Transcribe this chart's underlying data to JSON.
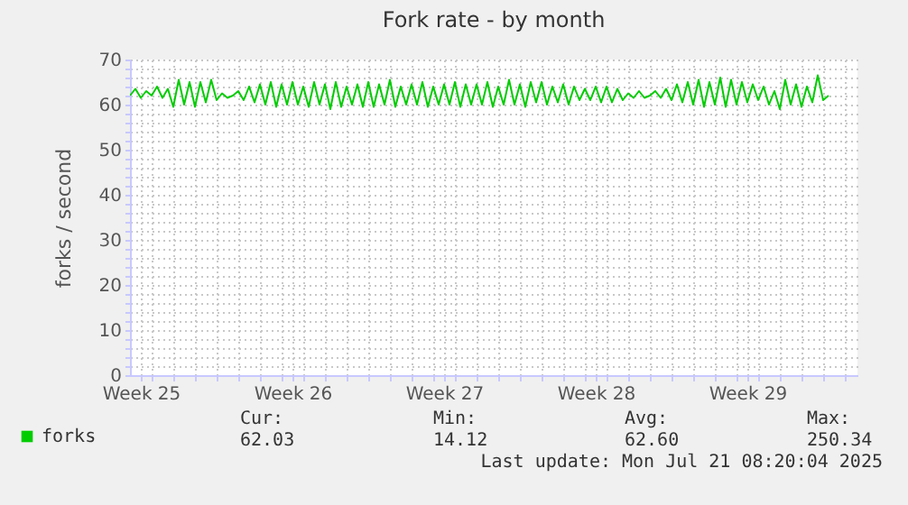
{
  "chart_data": {
    "type": "line",
    "title": "Fork rate - by month",
    "ylabel": "forks / second",
    "x": [
      "2025-06-19T00:00",
      "2025-06-19T06:00",
      "2025-06-19T12:00",
      "2025-06-19T18:00",
      "2025-06-20T00:00",
      "2025-06-20T06:00",
      "2025-06-20T12:00",
      "2025-06-20T18:00",
      "2025-06-21T00:00",
      "2025-06-21T06:00",
      "2025-06-21T12:00",
      "2025-06-21T18:00",
      "2025-06-22T00:00",
      "2025-06-22T06:00",
      "2025-06-22T12:00",
      "2025-06-22T18:00",
      "2025-06-23T00:00",
      "2025-06-23T06:00",
      "2025-06-23T12:00",
      "2025-06-23T18:00",
      "2025-06-24T00:00",
      "2025-06-24T06:00",
      "2025-06-24T12:00",
      "2025-06-24T18:00",
      "2025-06-25T00:00",
      "2025-06-25T06:00",
      "2025-06-25T12:00",
      "2025-06-25T18:00",
      "2025-06-26T00:00",
      "2025-06-26T06:00",
      "2025-06-26T12:00",
      "2025-06-26T18:00",
      "2025-06-27T00:00",
      "2025-06-27T06:00",
      "2025-06-27T12:00",
      "2025-06-27T18:00",
      "2025-06-28T00:00",
      "2025-06-28T06:00",
      "2025-06-28T12:00",
      "2025-06-28T18:00",
      "2025-06-29T00:00",
      "2025-06-29T06:00",
      "2025-06-29T12:00",
      "2025-06-29T18:00",
      "2025-06-30T00:00",
      "2025-06-30T06:00",
      "2025-06-30T12:00",
      "2025-06-30T18:00",
      "2025-07-01T00:00",
      "2025-07-01T06:00",
      "2025-07-01T12:00",
      "2025-07-01T18:00",
      "2025-07-02T00:00",
      "2025-07-02T06:00",
      "2025-07-02T12:00",
      "2025-07-02T18:00",
      "2025-07-03T00:00",
      "2025-07-03T06:00",
      "2025-07-03T12:00",
      "2025-07-03T18:00",
      "2025-07-04T00:00",
      "2025-07-04T06:00",
      "2025-07-04T12:00",
      "2025-07-04T18:00",
      "2025-07-05T00:00",
      "2025-07-05T06:00",
      "2025-07-05T12:00",
      "2025-07-05T18:00",
      "2025-07-06T00:00",
      "2025-07-06T06:00",
      "2025-07-06T12:00",
      "2025-07-06T18:00",
      "2025-07-07T00:00",
      "2025-07-07T06:00",
      "2025-07-07T12:00",
      "2025-07-07T18:00",
      "2025-07-08T00:00",
      "2025-07-08T06:00",
      "2025-07-08T12:00",
      "2025-07-08T18:00",
      "2025-07-09T00:00",
      "2025-07-09T06:00",
      "2025-07-09T12:00",
      "2025-07-09T18:00",
      "2025-07-10T00:00",
      "2025-07-10T06:00",
      "2025-07-10T12:00",
      "2025-07-10T18:00",
      "2025-07-11T00:00",
      "2025-07-11T06:00",
      "2025-07-11T12:00",
      "2025-07-11T18:00",
      "2025-07-12T00:00",
      "2025-07-12T06:00",
      "2025-07-12T12:00",
      "2025-07-12T18:00",
      "2025-07-13T00:00",
      "2025-07-13T06:00",
      "2025-07-13T12:00",
      "2025-07-13T18:00",
      "2025-07-14T00:00",
      "2025-07-14T06:00",
      "2025-07-14T12:00",
      "2025-07-14T18:00",
      "2025-07-15T00:00",
      "2025-07-15T06:00",
      "2025-07-15T12:00",
      "2025-07-15T18:00",
      "2025-07-16T00:00",
      "2025-07-16T06:00",
      "2025-07-16T12:00",
      "2025-07-16T18:00",
      "2025-07-17T00:00",
      "2025-07-17T06:00",
      "2025-07-17T12:00",
      "2025-07-17T18:00",
      "2025-07-18T00:00",
      "2025-07-18T06:00",
      "2025-07-18T12:00",
      "2025-07-18T18:00",
      "2025-07-19T00:00",
      "2025-07-19T06:00",
      "2025-07-19T12:00",
      "2025-07-19T18:00",
      "2025-07-20T00:00",
      "2025-07-20T06:00",
      "2025-07-20T12:00",
      "2025-07-20T18:00",
      "2025-07-21T00:00",
      "2025-07-21T06:00"
    ],
    "series": [
      {
        "name": "forks",
        "color": "#00cc00",
        "values": [
          62,
          63.5,
          61.5,
          63,
          62,
          64,
          61.5,
          63.5,
          59.5,
          65.5,
          60,
          65,
          59.5,
          65,
          60.5,
          65.5,
          61,
          62.5,
          61.5,
          62,
          63,
          61,
          64,
          60.5,
          64.5,
          60,
          65,
          59.5,
          64.5,
          60,
          65,
          60,
          64,
          59.5,
          65,
          60,
          64.5,
          59,
          65,
          59.5,
          64,
          60,
          64.5,
          59.5,
          65,
          59.5,
          64.5,
          60,
          65.5,
          59.5,
          64,
          60,
          64.5,
          60,
          65,
          59.5,
          64,
          60,
          64.5,
          60,
          65,
          59.5,
          64.5,
          60,
          64.5,
          60,
          65,
          59.5,
          64,
          60,
          65.5,
          60,
          64.5,
          59.5,
          65,
          60.5,
          65,
          60,
          64,
          60.5,
          64.5,
          60,
          64,
          61,
          63.5,
          61,
          64,
          60.5,
          64,
          60.5,
          63.5,
          61,
          62.5,
          61.5,
          63,
          61.5,
          62,
          63,
          61.5,
          63.5,
          61,
          64.5,
          60.5,
          65,
          60,
          65.5,
          59.5,
          65,
          60,
          66,
          59.5,
          65.5,
          60,
          65,
          60.5,
          64.5,
          61,
          64,
          60,
          63,
          59,
          65.5,
          60,
          64.5,
          59.5,
          64,
          60.5,
          66.5,
          61,
          62
        ]
      }
    ],
    "xlim": [
      "2025-06-19T00:00",
      "2025-07-22T14:00"
    ],
    "xticks": [
      {
        "value": "2025-06-19T12:00",
        "label": "Week 25"
      },
      {
        "value": "2025-06-26T12:00",
        "label": "Week 26"
      },
      {
        "value": "2025-07-03T12:00",
        "label": "Week 27"
      },
      {
        "value": "2025-07-10T12:00",
        "label": "Week 28"
      },
      {
        "value": "2025-07-17T12:00",
        "label": "Week 29"
      },
      {
        "value": "2025-06-20",
        "label": null
      },
      {
        "value": "2025-06-21",
        "label": null
      },
      {
        "value": "2025-06-22",
        "label": null
      },
      {
        "value": "2025-06-23",
        "label": null
      },
      {
        "value": "2025-06-24",
        "label": null
      },
      {
        "value": "2025-06-25",
        "label": null
      },
      {
        "value": "2025-06-26",
        "label": null
      },
      {
        "value": "2025-06-27",
        "label": null
      },
      {
        "value": "2025-06-28",
        "label": null
      },
      {
        "value": "2025-06-29",
        "label": null
      },
      {
        "value": "2025-06-30",
        "label": null
      },
      {
        "value": "2025-07-01",
        "label": null
      },
      {
        "value": "2025-07-02",
        "label": null
      },
      {
        "value": "2025-07-03",
        "label": null
      },
      {
        "value": "2025-07-04",
        "label": null
      },
      {
        "value": "2025-07-05",
        "label": null
      },
      {
        "value": "2025-07-06",
        "label": null
      },
      {
        "value": "2025-07-07",
        "label": null
      },
      {
        "value": "2025-07-08",
        "label": null
      },
      {
        "value": "2025-07-09",
        "label": null
      },
      {
        "value": "2025-07-10",
        "label": null
      },
      {
        "value": "2025-07-11",
        "label": null
      },
      {
        "value": "2025-07-12",
        "label": null
      },
      {
        "value": "2025-07-13",
        "label": null
      },
      {
        "value": "2025-07-14",
        "label": null
      },
      {
        "value": "2025-07-15",
        "label": null
      },
      {
        "value": "2025-07-16",
        "label": null
      },
      {
        "value": "2025-07-17",
        "label": null
      },
      {
        "value": "2025-07-18",
        "label": null
      },
      {
        "value": "2025-07-19",
        "label": null
      },
      {
        "value": "2025-07-20",
        "label": null
      },
      {
        "value": "2025-07-21",
        "label": null
      },
      {
        "value": "2025-07-22",
        "label": null
      }
    ],
    "ylim": [
      0,
      70
    ],
    "yticks": [
      0,
      10,
      20,
      30,
      40,
      50,
      60,
      70,
      {
        "value": 2,
        "label": null
      },
      {
        "value": 4,
        "label": null
      },
      {
        "value": 6,
        "label": null
      },
      {
        "value": 8,
        "label": null
      },
      {
        "value": 12,
        "label": null
      },
      {
        "value": 14,
        "label": null
      },
      {
        "value": 16,
        "label": null
      },
      {
        "value": 18,
        "label": null
      },
      {
        "value": 22,
        "label": null
      },
      {
        "value": 24,
        "label": null
      },
      {
        "value": 26,
        "label": null
      },
      {
        "value": 28,
        "label": null
      },
      {
        "value": 32,
        "label": null
      },
      {
        "value": 34,
        "label": null
      },
      {
        "value": 36,
        "label": null
      },
      {
        "value": 38,
        "label": null
      },
      {
        "value": 42,
        "label": null
      },
      {
        "value": 44,
        "label": null
      },
      {
        "value": 46,
        "label": null
      },
      {
        "value": 48,
        "label": null
      },
      {
        "value": 52,
        "label": null
      },
      {
        "value": 54,
        "label": null
      },
      {
        "value": 56,
        "label": null
      },
      {
        "value": 58,
        "label": null
      },
      {
        "value": 62,
        "label": null
      },
      {
        "value": 64,
        "label": null
      },
      {
        "value": 66,
        "label": null
      },
      {
        "value": 68,
        "label": null
      }
    ],
    "grid": true,
    "legend": "bottom left",
    "annotations": [
      "Cur:",
      "Min:",
      "Avg:",
      "Max:",
      "62.03",
      "14.12",
      "62.60",
      "250.34",
      "Last update: Mon Jul 21 08:20:04 2025"
    ]
  }
}
